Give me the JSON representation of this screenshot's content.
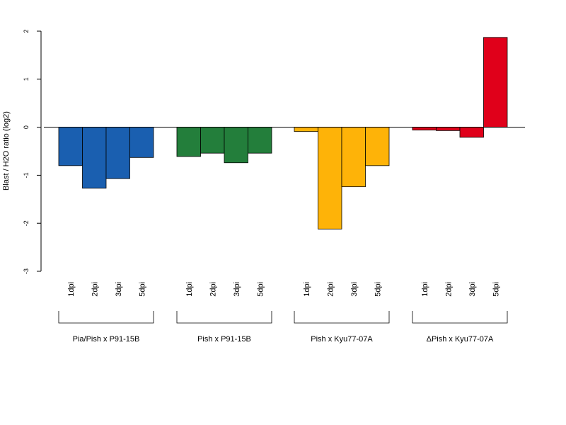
{
  "chart_data": {
    "type": "bar",
    "title": "",
    "xlabel": "",
    "ylabel": "Blast / H2O ratio (log2)",
    "ylim": [
      -3,
      2
    ],
    "yticks": [
      "2",
      "1",
      "0",
      "-1",
      "-2",
      "-3"
    ],
    "grid": false,
    "legend": "none",
    "groups": [
      {
        "name": "Pia/Pish x P91-15B",
        "color": "#1a5fb0",
        "categories": [
          "1dpi",
          "2dpi",
          "3dpi",
          "5dpi"
        ],
        "values": [
          -0.8,
          -1.27,
          -1.07,
          -0.63
        ]
      },
      {
        "name": "Pish x P91-15B",
        "color": "#237e3b",
        "categories": [
          "1dpi",
          "2dpi",
          "3dpi",
          "5dpi"
        ],
        "values": [
          -0.61,
          -0.54,
          -0.74,
          -0.54
        ]
      },
      {
        "name": "Pish x Kyu77-07A",
        "color": "#feb308",
        "categories": [
          "1dpi",
          "2dpi",
          "3dpi",
          "5dpi"
        ],
        "values": [
          -0.09,
          -2.12,
          -1.24,
          -0.8
        ]
      },
      {
        "name": "ΔPish x Kyu77-07A",
        "color": "#e0001a",
        "categories": [
          "1dpi",
          "2dpi",
          "3dpi",
          "5dpi"
        ],
        "values": [
          -0.06,
          -0.07,
          -0.21,
          1.87
        ]
      }
    ]
  }
}
